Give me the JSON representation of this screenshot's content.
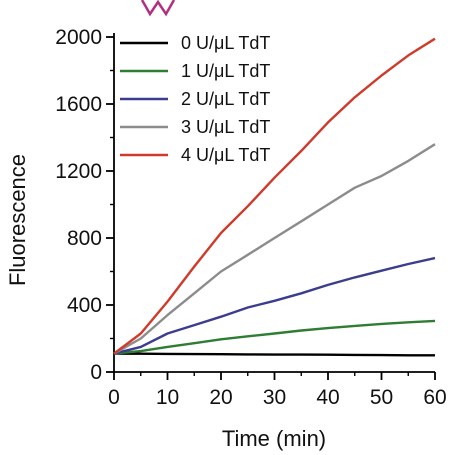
{
  "chart_data": {
    "type": "line",
    "xlabel": "Time (min)",
    "ylabel": "Fluorescence",
    "xlim": [
      0,
      60
    ],
    "ylim": [
      0,
      2000
    ],
    "xticks": [
      "0",
      "10",
      "20",
      "30",
      "40",
      "50",
      "60"
    ],
    "yticks": [
      "0",
      "400",
      "800",
      "1200",
      "1600",
      "2000"
    ],
    "grid": false,
    "legend_position": "top-left",
    "series": [
      {
        "name": "0 U/μL TdT",
        "color": "#000000",
        "x": [
          0,
          5,
          10,
          15,
          20,
          25,
          30,
          35,
          40,
          45,
          50,
          55,
          60
        ],
        "y": [
          110,
          109,
          108,
          107,
          106,
          105,
          104,
          104,
          103,
          102,
          101,
          100,
          100
        ]
      },
      {
        "name": "1 U/μL TdT",
        "color": "#2e7d32",
        "x": [
          0,
          5,
          10,
          15,
          20,
          25,
          30,
          35,
          40,
          45,
          50,
          55,
          60
        ],
        "y": [
          110,
          125,
          150,
          172,
          195,
          213,
          230,
          248,
          262,
          275,
          287,
          297,
          305
        ]
      },
      {
        "name": "2 U/μL TdT",
        "color": "#3b3d8f",
        "x": [
          0,
          5,
          10,
          15,
          20,
          25,
          30,
          35,
          40,
          45,
          50,
          55,
          60
        ],
        "y": [
          110,
          150,
          230,
          280,
          330,
          385,
          425,
          470,
          520,
          565,
          605,
          645,
          680
        ]
      },
      {
        "name": "3 U/μL TdT",
        "color": "#8c8c8c",
        "x": [
          0,
          5,
          10,
          15,
          20,
          25,
          30,
          35,
          40,
          45,
          50,
          55,
          60
        ],
        "y": [
          110,
          200,
          340,
          470,
          600,
          700,
          800,
          900,
          1000,
          1100,
          1170,
          1260,
          1360
        ]
      },
      {
        "name": "4 U/μL TdT",
        "color": "#cf3a2a",
        "x": [
          0,
          5,
          10,
          15,
          20,
          25,
          30,
          35,
          40,
          45,
          50,
          55,
          60
        ],
        "y": [
          110,
          230,
          420,
          630,
          830,
          990,
          1160,
          1320,
          1490,
          1640,
          1770,
          1890,
          1990
        ]
      }
    ]
  }
}
